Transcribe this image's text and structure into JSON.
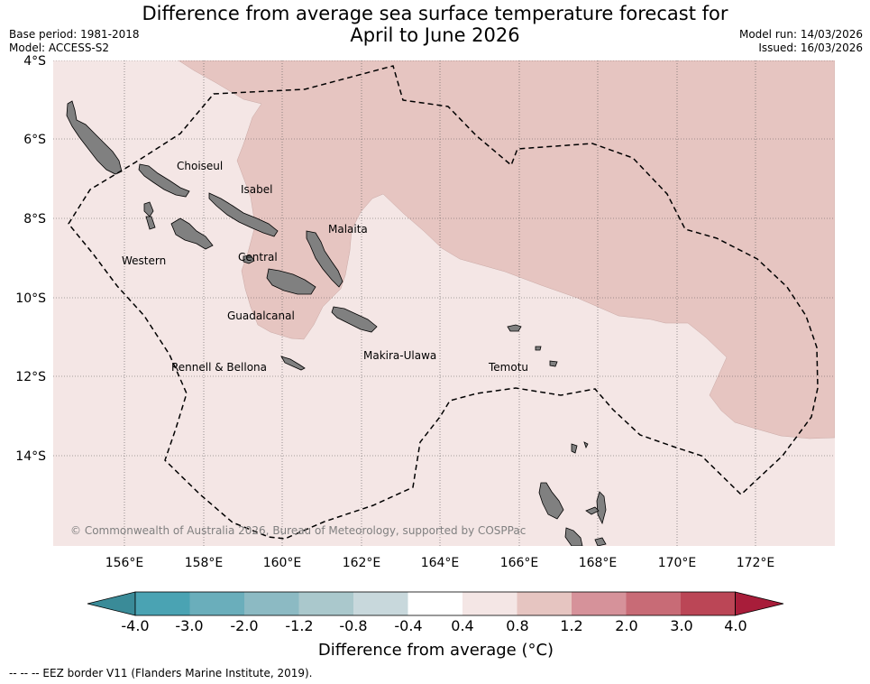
{
  "title": {
    "line1": "Difference from average sea surface temperature forecast for",
    "line2": "April to June 2026"
  },
  "meta": {
    "base_period": "Base period: 1981-2018",
    "model": "Model: ACCESS-S2",
    "model_run": "Model run: 14/03/2026",
    "issued": "Issued: 16/03/2026"
  },
  "axes": {
    "lat_labels": [
      "4°S",
      "6°S",
      "8°S",
      "10°S",
      "12°S",
      "14°S"
    ],
    "lon_labels": [
      "156°E",
      "158°E",
      "160°E",
      "162°E",
      "164°E",
      "166°E",
      "168°E",
      "170°E",
      "172°E"
    ]
  },
  "places": {
    "choiseul": "Choiseul",
    "isabel": "Isabel",
    "malaita": "Malaita",
    "western": "Western",
    "central": "Central",
    "guadalcanal": "Guadalcanal",
    "rennell": "Rennell & Bellona",
    "makira": "Makira-Ulawa",
    "temotu": "Temotu"
  },
  "copyright": "© Commonwealth of Australia 2026, Bureau of Meteorology, supported by COSPPac",
  "colorbar": {
    "title": "Difference from average (°C)",
    "labels": [
      "-4.0",
      "-3.0",
      "-2.0",
      "-1.2",
      "-0.8",
      "-0.4",
      "0.4",
      "0.8",
      "1.2",
      "2.0",
      "3.0",
      "4.0"
    ],
    "colors": [
      "#3a8b98",
      "#4aa3b3",
      "#6aaebb",
      "#8cbac3",
      "#aac8cc",
      "#c8d8dc",
      "#ffffff",
      "#f4e6e5",
      "#e6c5c1",
      "#d6929a",
      "#c86b76",
      "#bb4656",
      "#a81d3a"
    ]
  },
  "footnote": "--  --  -- EEZ border V11 (Flanders Marine Institute, 2019).",
  "colors": {
    "light_anomaly": "#f4e6e5",
    "medium_anomaly": "#e6c5c1",
    "land": "#808080"
  }
}
